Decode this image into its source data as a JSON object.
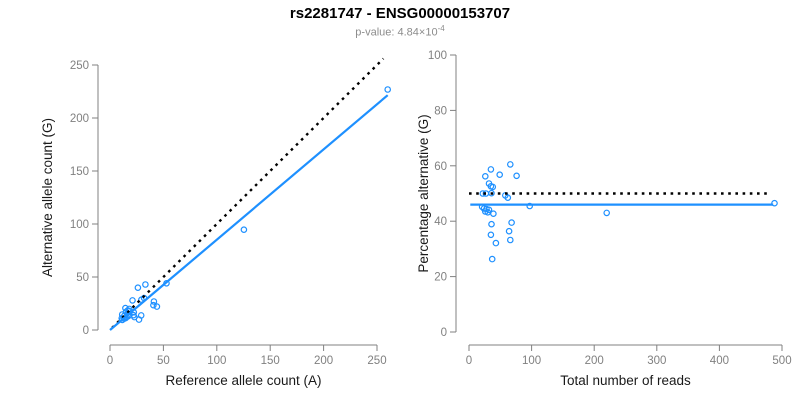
{
  "header": {
    "title": "rs2281747 - ENSG00000153707",
    "pvalue_prefix": "p-value: ",
    "pvalue_mantissa": "4.84×10",
    "pvalue_exponent": "-4"
  },
  "colors": {
    "point_stroke": "#1E90FF",
    "fit_line": "#1E90FF",
    "identity_line": "#000000",
    "axis_line": "#808080",
    "tick_label": "#808080",
    "axis_title": "#1a1a1a",
    "background": "#ffffff"
  },
  "chart_data": [
    {
      "type": "scatter",
      "name": "allele-counts-scatter",
      "xlabel": "Reference allele count (A)",
      "ylabel": "Alternative allele count (G)",
      "xlim": [
        0,
        260
      ],
      "ylim": [
        0,
        257
      ],
      "xticks": [
        0,
        50,
        100,
        150,
        200,
        250
      ],
      "yticks": [
        0,
        50,
        100,
        150,
        200,
        250
      ],
      "grid": false,
      "legend": "none",
      "points": [
        [
          11.4,
          14.6
        ],
        [
          14.4,
          20.7
        ],
        [
          21.1,
          27.9
        ],
        [
          26.1,
          39.9
        ],
        [
          33.1,
          42.9
        ],
        [
          14.9,
          17.1
        ],
        [
          16.6,
          18.4
        ],
        [
          18.1,
          19.9
        ],
        [
          11.0,
          11.0
        ],
        [
          13.5,
          13.5
        ],
        [
          18.0,
          18.0
        ],
        [
          29.4,
          28.6
        ],
        [
          31.9,
          30.1
        ],
        [
          11.5,
          9.5
        ],
        [
          13.3,
          10.7
        ],
        [
          15.6,
          12.4
        ],
        [
          17.9,
          14.1
        ],
        [
          14.7,
          11.3
        ],
        [
          17.0,
          13.0
        ],
        [
          22.3,
          16.7
        ],
        [
          52.9,
          44.1
        ],
        [
          125.4,
          94.6
        ],
        [
          260.0,
          226.9
        ],
        [
          22.0,
          14.0
        ],
        [
          41.1,
          26.9
        ],
        [
          40.6,
          23.4
        ],
        [
          22.8,
          12.2
        ],
        [
          29.2,
          13.8
        ],
        [
          43.9,
          22.1
        ],
        [
          27.2,
          9.8
        ]
      ],
      "lines": [
        {
          "name": "identity-line",
          "style": "dashed",
          "color": "#000000",
          "x1": 2,
          "y1": 2,
          "x2": 256,
          "y2": 256
        },
        {
          "name": "fit-line",
          "style": "solid",
          "color": "#1E90FF",
          "x1": 0,
          "y1": 0,
          "x2": 260,
          "y2": 221.5
        }
      ]
    },
    {
      "type": "scatter",
      "name": "percentage-vs-reads-scatter",
      "xlabel": "Total number of reads",
      "ylabel": "Percentage alternative (G)",
      "xlim": [
        0,
        500
      ],
      "ylim": [
        0,
        100
      ],
      "xticks": [
        0,
        100,
        200,
        300,
        400,
        500
      ],
      "yticks": [
        0,
        20,
        40,
        60,
        80,
        100
      ],
      "grid": false,
      "legend": "none",
      "points": [
        [
          26,
          56.2
        ],
        [
          35,
          58.7
        ],
        [
          49,
          56.8
        ],
        [
          66,
          60.5
        ],
        [
          76,
          56.4
        ],
        [
          32,
          53.6
        ],
        [
          35,
          52.6
        ],
        [
          38,
          52.4
        ],
        [
          22,
          50.0
        ],
        [
          27,
          50.0
        ],
        [
          36,
          50.1
        ],
        [
          58,
          49.3
        ],
        [
          62,
          48.5
        ],
        [
          21,
          45.2
        ],
        [
          24,
          44.6
        ],
        [
          28,
          44.4
        ],
        [
          32,
          44.1
        ],
        [
          26,
          43.5
        ],
        [
          30,
          43.2
        ],
        [
          39,
          42.7
        ],
        [
          97,
          45.5
        ],
        [
          220,
          43.0
        ],
        [
          488,
          46.5
        ],
        [
          36,
          38.9
        ],
        [
          68,
          39.5
        ],
        [
          64,
          36.4
        ],
        [
          35,
          35.1
        ],
        [
          43,
          32.1
        ],
        [
          66,
          33.2
        ],
        [
          37,
          26.3
        ]
      ],
      "lines": [
        {
          "name": "null-50pct-line",
          "style": "dashed",
          "color": "#000000",
          "x1": 0,
          "y1": 50,
          "x2": 477,
          "y2": 50
        },
        {
          "name": "fit-line",
          "style": "solid",
          "color": "#1E90FF",
          "x1": 2,
          "y1": 46,
          "x2": 486,
          "y2": 46
        }
      ]
    }
  ]
}
